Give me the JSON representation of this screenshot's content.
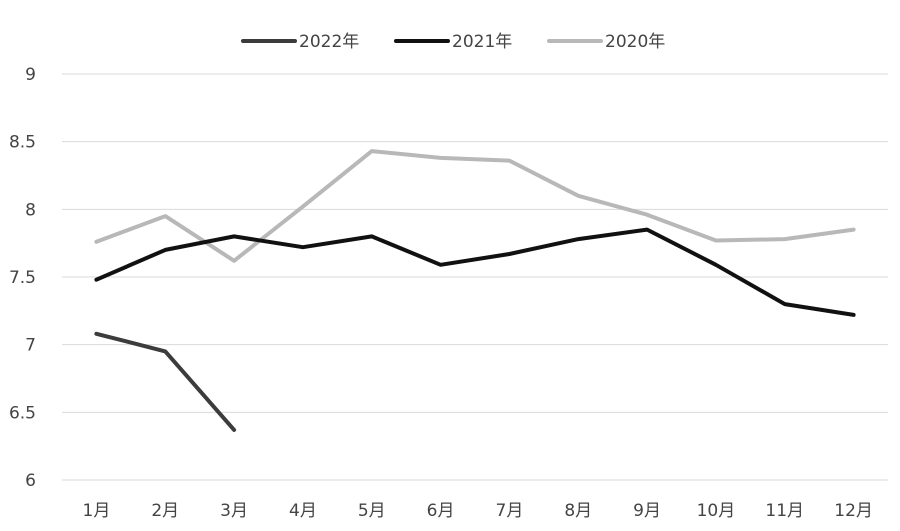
{
  "chart_data": {
    "type": "line",
    "categories": [
      "1月",
      "2月",
      "3月",
      "4月",
      "5月",
      "6月",
      "7月",
      "8月",
      "9月",
      "10月",
      "11月",
      "12月"
    ],
    "series": [
      {
        "name": "2022年",
        "color": "#3c3c3c",
        "values": [
          7.08,
          6.95,
          6.37,
          null,
          null,
          null,
          null,
          null,
          null,
          null,
          null,
          null
        ]
      },
      {
        "name": "2021年",
        "color": "#111111",
        "values": [
          7.48,
          7.7,
          7.8,
          7.72,
          7.8,
          7.59,
          7.67,
          7.78,
          7.85,
          7.59,
          7.3,
          7.22
        ]
      },
      {
        "name": "2020年",
        "color": "#b8b8b8",
        "values": [
          7.76,
          7.95,
          7.62,
          8.02,
          8.43,
          8.38,
          8.36,
          8.1,
          7.96,
          7.77,
          7.78,
          7.85
        ]
      }
    ],
    "y_ticks": [
      "9",
      "8.5",
      "8",
      "7.5",
      "7",
      "6.5",
      "6"
    ],
    "ylim": [
      6,
      9
    ],
    "grid": true,
    "legend_position": "top-center"
  }
}
